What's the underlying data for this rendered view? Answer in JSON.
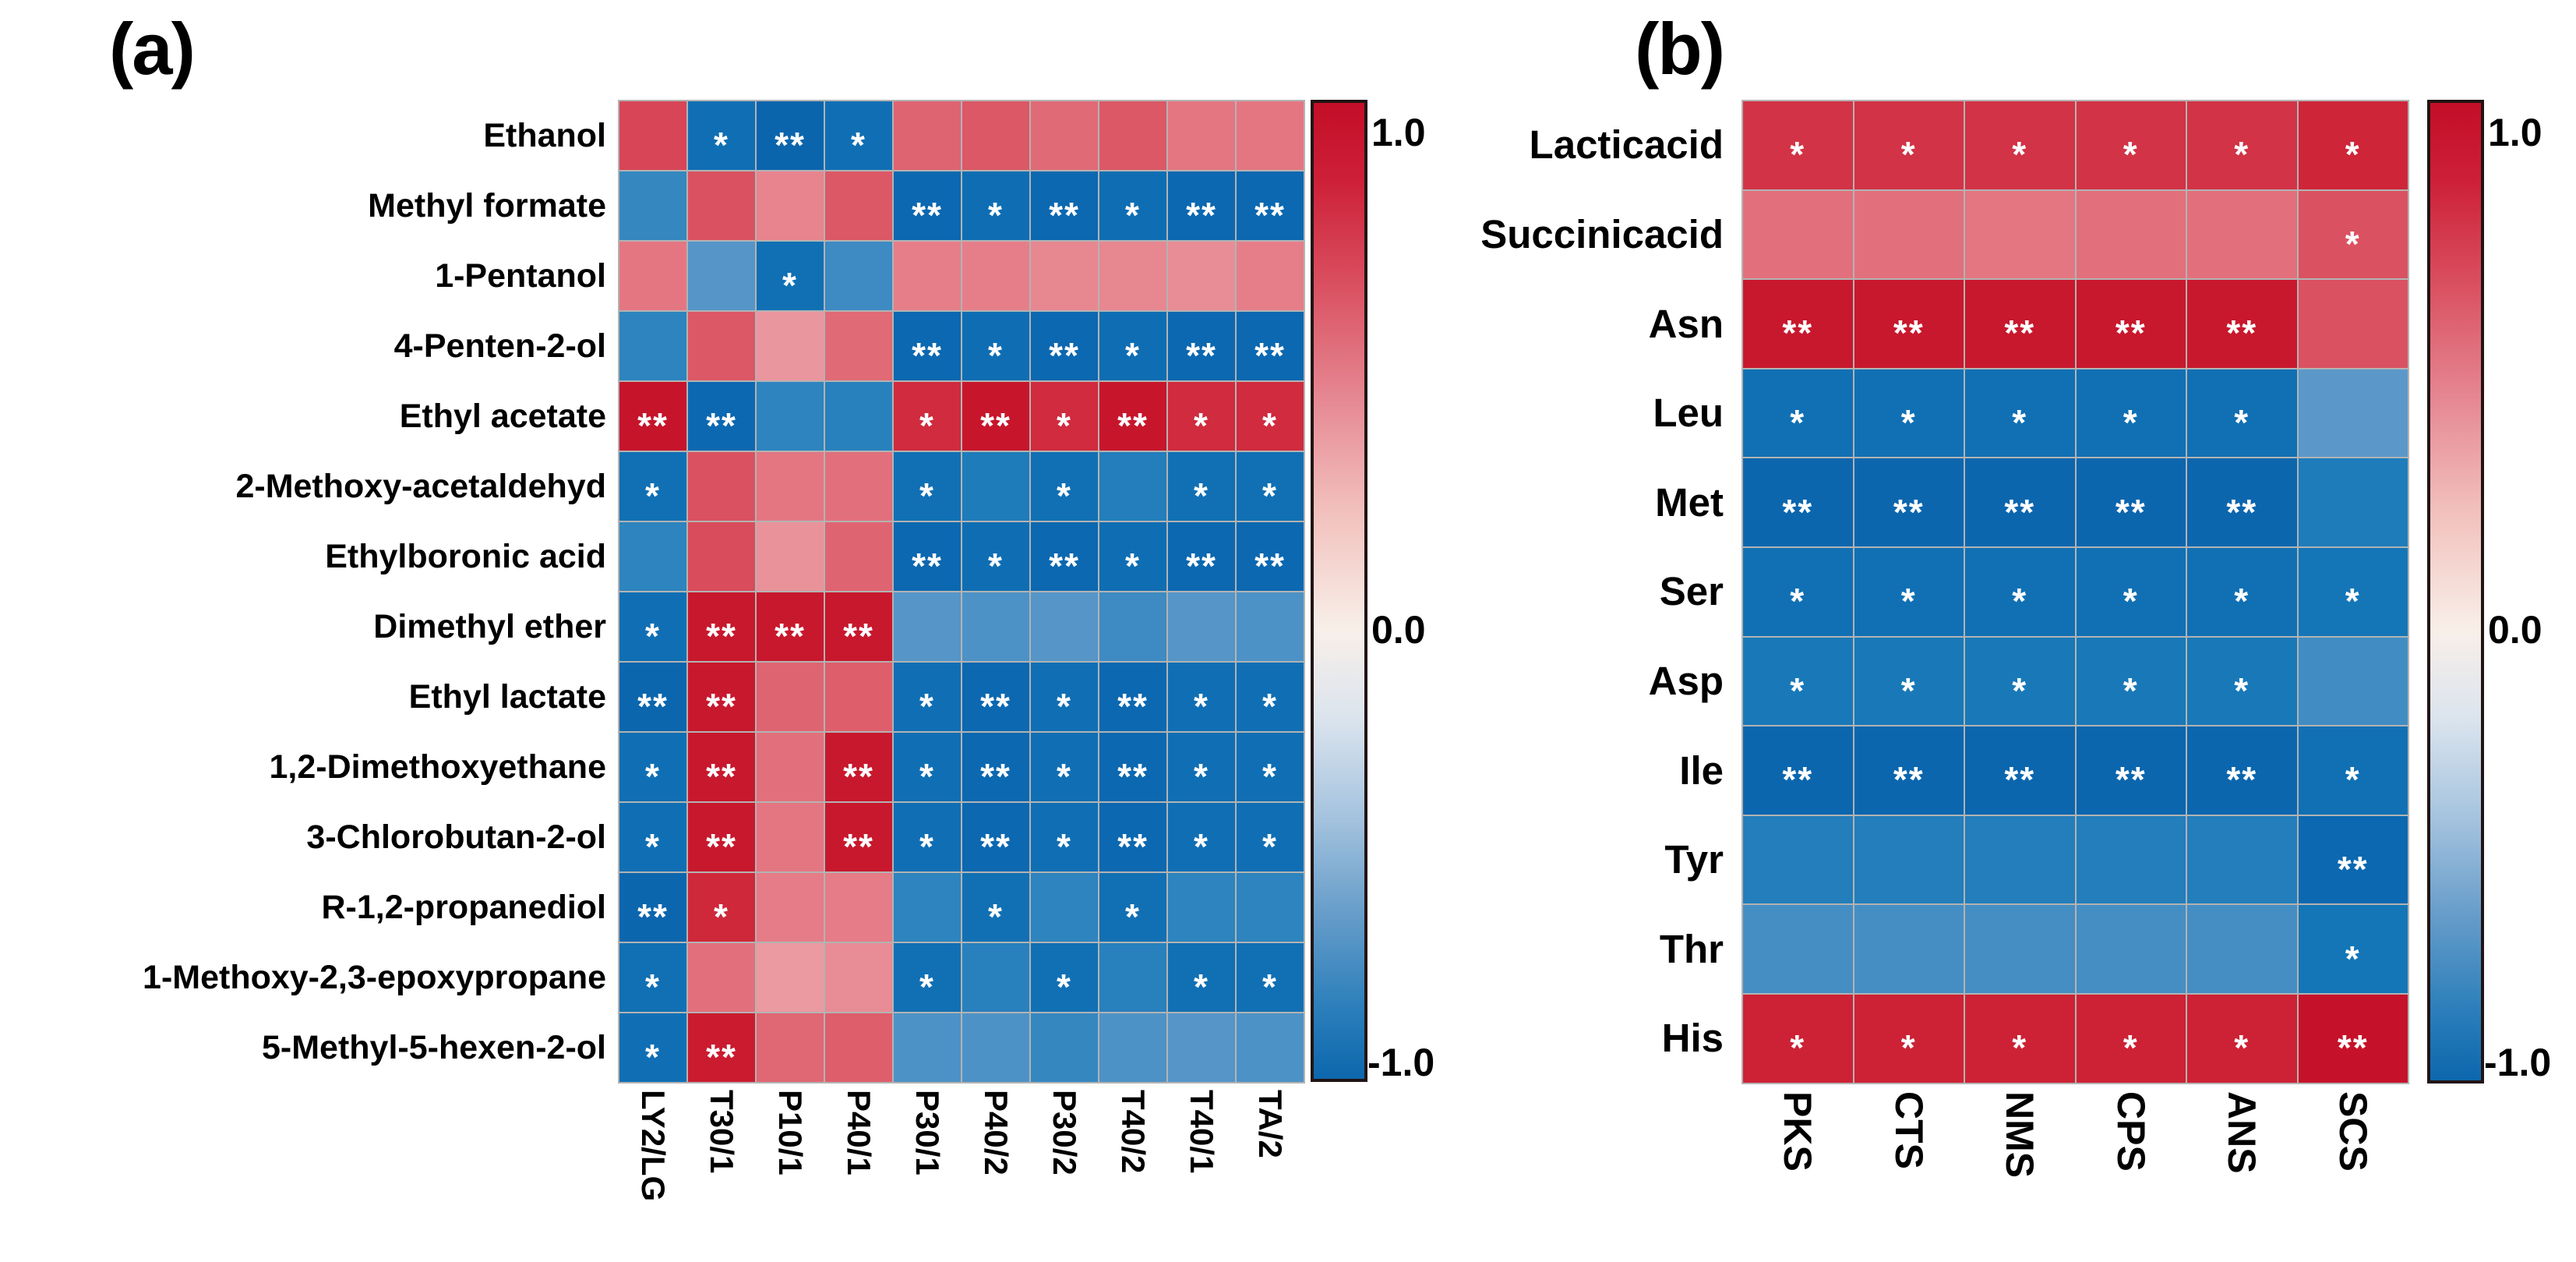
{
  "figure": {
    "background": "#ffffff",
    "grid_line_color": "#b3b3b3",
    "significance_marker_color": "#ffffff",
    "colormap": {
      "positive_max": "#c30e27",
      "zero": "#f8efe9",
      "negative_max": "#0d67ad"
    }
  },
  "chart_data": [
    {
      "type": "heatmap",
      "panel_label": "(a)",
      "columns": [
        "LY2/LG",
        "T30/1",
        "P10/1",
        "P40/1",
        "P30/1",
        "P40/2",
        "P30/2",
        "T40/2",
        "T40/1",
        "TA/2"
      ],
      "rows": [
        "Ethanol",
        "Methyl formate",
        "1-Pentanol",
        "4-Penten-2-ol",
        "Ethyl acetate",
        "2-Methoxy-acetaldehyd",
        "Ethylboronic acid",
        "Dimethyl ether",
        "Ethyl lactate",
        "1,2-Dimethoxyethane",
        "3-Chlorobutan-2-ol",
        "R-1,2-propanediol",
        "1-Methoxy-2,3-epoxypropane",
        "5-Methyl-5-hexen-2-ol"
      ],
      "values": [
        [
          0.76,
          -0.85,
          -0.94,
          -0.85,
          0.66,
          0.7,
          0.64,
          0.7,
          0.6,
          0.6
        ],
        [
          -0.68,
          0.72,
          0.55,
          0.7,
          -0.9,
          -0.86,
          -0.9,
          -0.86,
          -0.9,
          -0.9
        ],
        [
          0.6,
          -0.6,
          -0.84,
          -0.66,
          0.57,
          0.57,
          0.54,
          0.54,
          0.52,
          0.57
        ],
        [
          -0.7,
          0.7,
          0.48,
          0.64,
          -0.9,
          -0.86,
          -0.9,
          -0.86,
          -0.9,
          -0.9
        ],
        [
          0.96,
          -0.9,
          -0.7,
          -0.72,
          0.85,
          0.94,
          0.85,
          0.94,
          0.85,
          0.85
        ],
        [
          -0.84,
          0.72,
          0.6,
          0.62,
          -0.84,
          -0.76,
          -0.84,
          -0.74,
          -0.84,
          -0.84
        ],
        [
          -0.7,
          0.74,
          0.5,
          0.66,
          -0.9,
          -0.86,
          -0.9,
          -0.86,
          -0.9,
          -0.9
        ],
        [
          -0.85,
          0.93,
          0.93,
          0.93,
          -0.6,
          -0.62,
          -0.6,
          -0.66,
          -0.6,
          -0.62
        ],
        [
          -0.93,
          0.93,
          0.66,
          0.68,
          -0.85,
          -0.9,
          -0.85,
          -0.9,
          -0.85,
          -0.85
        ],
        [
          -0.85,
          0.93,
          0.62,
          0.93,
          -0.85,
          -0.9,
          -0.85,
          -0.9,
          -0.85,
          -0.85
        ],
        [
          -0.85,
          0.93,
          0.6,
          0.93,
          -0.85,
          -0.9,
          -0.85,
          -0.9,
          -0.85,
          -0.85
        ],
        [
          -0.92,
          0.86,
          0.58,
          0.58,
          -0.7,
          -0.84,
          -0.7,
          -0.84,
          -0.7,
          -0.7
        ],
        [
          -0.84,
          0.62,
          0.46,
          0.52,
          -0.84,
          -0.72,
          -0.84,
          -0.72,
          -0.84,
          -0.84
        ],
        [
          -0.85,
          0.91,
          0.65,
          0.68,
          -0.62,
          -0.62,
          -0.68,
          -0.62,
          -0.6,
          -0.62
        ]
      ],
      "significance": [
        [
          "",
          "*",
          "**",
          "*",
          "",
          "",
          "",
          "",
          "",
          ""
        ],
        [
          "",
          "",
          "",
          "",
          "**",
          "*",
          "**",
          "*",
          "**",
          "**"
        ],
        [
          "",
          "",
          "*",
          "",
          "",
          "",
          "",
          "",
          "",
          ""
        ],
        [
          "",
          "",
          "",
          "",
          "**",
          "*",
          "**",
          "*",
          "**",
          "**"
        ],
        [
          "**",
          "**",
          "",
          "",
          "*",
          "**",
          "*",
          "**",
          "*",
          "*"
        ],
        [
          "*",
          "",
          "",
          "",
          "*",
          "",
          "*",
          "",
          "*",
          "*"
        ],
        [
          "",
          "",
          "",
          "",
          "**",
          "*",
          "**",
          "*",
          "**",
          "**"
        ],
        [
          "*",
          "**",
          "**",
          "**",
          "",
          "",
          "",
          "",
          "",
          ""
        ],
        [
          "**",
          "**",
          "",
          "",
          "*",
          "**",
          "*",
          "**",
          "*",
          "*"
        ],
        [
          "*",
          "**",
          "",
          "**",
          "*",
          "**",
          "*",
          "**",
          "*",
          "*"
        ],
        [
          "*",
          "**",
          "",
          "**",
          "*",
          "**",
          "*",
          "**",
          "*",
          "*"
        ],
        [
          "**",
          "*",
          "",
          "",
          "",
          "*",
          "",
          "*",
          "",
          ""
        ],
        [
          "*",
          "",
          "",
          "",
          "*",
          "",
          "*",
          "",
          "*",
          "*"
        ],
        [
          "*",
          "**",
          "",
          "",
          "",
          "",
          "",
          "",
          "",
          ""
        ]
      ],
      "colorbar": {
        "ticks": [
          "1.0",
          "0.0",
          "-1.0"
        ],
        "max": 1.0,
        "min": -1.0
      }
    },
    {
      "type": "heatmap",
      "panel_label": "(b)",
      "columns": [
        "PKS",
        "CTS",
        "NMS",
        "CPS",
        "ANS",
        "SCS"
      ],
      "rows": [
        "Lacticacid",
        "Succinicacid",
        "Asn",
        "Leu",
        "Met",
        "Ser",
        "Asp",
        "Ile",
        "Tyr",
        "Thr",
        "His"
      ],
      "values": [
        [
          0.82,
          0.82,
          0.82,
          0.82,
          0.82,
          0.87
        ],
        [
          0.62,
          0.62,
          0.6,
          0.62,
          0.62,
          0.72
        ],
        [
          0.93,
          0.93,
          0.93,
          0.93,
          0.93,
          0.72
        ],
        [
          -0.84,
          -0.84,
          -0.84,
          -0.84,
          -0.84,
          -0.58
        ],
        [
          -0.92,
          -0.92,
          -0.92,
          -0.92,
          -0.92,
          -0.76
        ],
        [
          -0.84,
          -0.84,
          -0.84,
          -0.84,
          -0.84,
          -0.8
        ],
        [
          -0.78,
          -0.78,
          -0.78,
          -0.78,
          -0.78,
          -0.65
        ],
        [
          -0.93,
          -0.93,
          -0.93,
          -0.93,
          -0.93,
          -0.84
        ],
        [
          -0.74,
          -0.74,
          -0.74,
          -0.74,
          -0.74,
          -0.9
        ],
        [
          -0.64,
          -0.64,
          -0.64,
          -0.64,
          -0.64,
          -0.8
        ],
        [
          0.88,
          0.88,
          0.88,
          0.88,
          0.88,
          0.97
        ]
      ],
      "significance": [
        [
          "*",
          "*",
          "*",
          "*",
          "*",
          "*"
        ],
        [
          "",
          "",
          "",
          "",
          "",
          "*"
        ],
        [
          "**",
          "**",
          "**",
          "**",
          "**",
          ""
        ],
        [
          "*",
          "*",
          "*",
          "*",
          "*",
          ""
        ],
        [
          "**",
          "**",
          "**",
          "**",
          "**",
          ""
        ],
        [
          "*",
          "*",
          "*",
          "*",
          "*",
          "*"
        ],
        [
          "*",
          "*",
          "*",
          "*",
          "*",
          ""
        ],
        [
          "**",
          "**",
          "**",
          "**",
          "**",
          "*"
        ],
        [
          "",
          "",
          "",
          "",
          "",
          "**"
        ],
        [
          "",
          "",
          "",
          "",
          "",
          "*"
        ],
        [
          "*",
          "*",
          "*",
          "*",
          "*",
          "**"
        ]
      ],
      "colorbar": {
        "ticks": [
          "1.0",
          "0.0",
          "-1.0"
        ],
        "max": 1.0,
        "min": -1.0
      }
    }
  ]
}
